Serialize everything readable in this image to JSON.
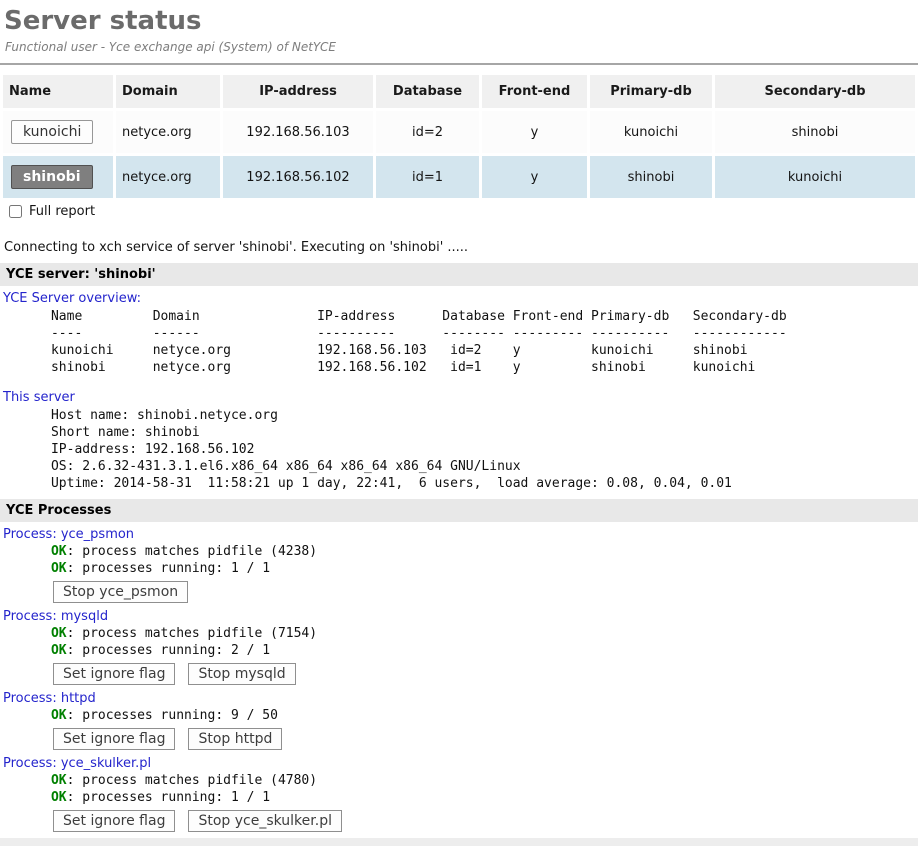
{
  "page": {
    "title": "Server status",
    "subtitle": "Functional user - Yce exchange api (System) of NetYCE"
  },
  "server_table": {
    "columns": [
      "Name",
      "Domain",
      "IP-address",
      "Database",
      "Front-end",
      "Primary-db",
      "Secondary-db"
    ],
    "rows": [
      {
        "name": "kunoichi",
        "domain": "netyce.org",
        "ip": "192.168.56.103",
        "database": "id=2",
        "front_end": "y",
        "primary_db": "kunoichi",
        "secondary_db": "shinobi",
        "selected": false
      },
      {
        "name": "shinobi",
        "domain": "netyce.org",
        "ip": "192.168.56.102",
        "database": "id=1",
        "front_end": "y",
        "primary_db": "shinobi",
        "secondary_db": "kunoichi",
        "selected": true
      }
    ]
  },
  "full_report": {
    "label": "Full report",
    "checked": false
  },
  "status_line": "Connecting to xch service of server 'shinobi'. Executing on 'shinobi' .....",
  "sections": {
    "server_header": "YCE server: 'shinobi'",
    "processes_header": "YCE Processes"
  },
  "overview": {
    "heading": "YCE Server overview:",
    "pre_lines": [
      "      Name         Domain               IP-address      Database Front-end Primary-db   Secondary-db",
      "      ----         ------               ----------      -------- --------- ----------   ------------",
      "      kunoichi     netyce.org           192.168.56.103   id=2    y         kunoichi     shinobi",
      "      shinobi      netyce.org           192.168.56.102   id=1    y         shinobi      kunoichi"
    ]
  },
  "this_server": {
    "heading": "This server",
    "pre_lines": [
      "      Host name: shinobi.netyce.org",
      "      Short name: shinobi",
      "      IP-address: 192.168.56.102",
      "      OS: 2.6.32-431.3.1.el6.x86_64 x86_64 x86_64 x86_64 GNU/Linux",
      "      Uptime: 2014-58-31  11:58:21 up 1 day, 22:41,  6 users,  load average: 0.08, 0.04, 0.01"
    ]
  },
  "processes": [
    {
      "heading": "Process: yce_psmon",
      "checks": [
        {
          "status": "OK",
          "text": ": process matches pidfile (4238)"
        },
        {
          "status": "OK",
          "text": ": processes running: 1 / 1"
        }
      ],
      "buttons": [
        "Stop yce_psmon"
      ]
    },
    {
      "heading": "Process: mysqld",
      "checks": [
        {
          "status": "OK",
          "text": ": process matches pidfile (7154)"
        },
        {
          "status": "OK",
          "text": ": processes running: 2 / 1"
        }
      ],
      "buttons": [
        "Set ignore flag",
        "Stop mysqld"
      ]
    },
    {
      "heading": "Process: httpd",
      "checks": [
        {
          "status": "OK",
          "text": ": processes running: 9 / 50"
        }
      ],
      "buttons": [
        "Set ignore flag",
        "Stop httpd"
      ]
    },
    {
      "heading": "Process: yce_skulker.pl",
      "checks": [
        {
          "status": "OK",
          "text": ": process matches pidfile (4780)"
        },
        {
          "status": "OK",
          "text": ": processes running: 1 / 1"
        }
      ],
      "buttons": [
        "Set ignore flag",
        "Stop yce_skulker.pl"
      ]
    }
  ],
  "colors": {
    "accent_blue": "#2424cc",
    "ok_green": "#008000",
    "selected_row_bg": "#d3e5ee",
    "section_bar_bg": "#e8e8e8",
    "title_gray": "#6b6b6b"
  }
}
